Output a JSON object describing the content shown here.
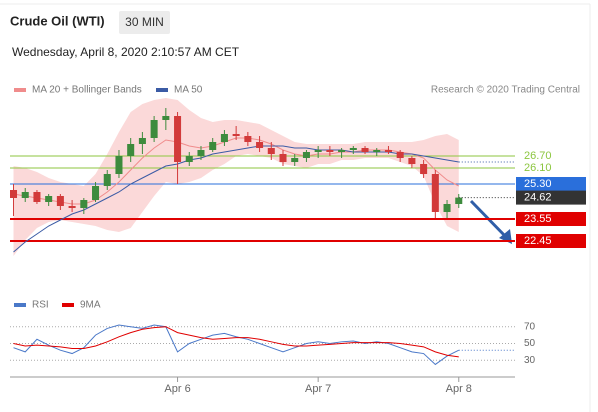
{
  "header": {
    "title": "Crude Oil (WTI)",
    "interval": "30 MIN",
    "timestamp": "Wednesday, April 8, 2020 2:10:57 AM CET"
  },
  "chart_data": [
    {
      "type": "candlestick",
      "source": "Research © 2020 Trading Central",
      "xlim": [
        -28.6,
        57.6
      ],
      "ylim": [
        21.5,
        29.5
      ],
      "x": [
        -28,
        -26,
        -24,
        -22,
        -20,
        -18,
        -16,
        -14,
        -12,
        -10,
        -8,
        -6,
        -4,
        -2,
        0,
        2,
        4,
        6,
        8,
        10,
        12,
        14,
        16,
        18,
        20,
        22,
        24,
        26,
        28,
        30,
        32,
        34,
        36,
        38,
        40,
        42,
        44,
        46,
        48
      ],
      "open": [
        25.0,
        24.6,
        24.9,
        24.4,
        24.7,
        24.2,
        24.1,
        24.5,
        25.2,
        25.8,
        26.7,
        27.3,
        27.6,
        28.5,
        28.7,
        26.4,
        26.7,
        27.0,
        27.4,
        27.8,
        27.7,
        27.4,
        27.1,
        26.8,
        26.4,
        26.6,
        26.9,
        27.0,
        26.9,
        27.0,
        27.1,
        26.9,
        27.0,
        26.9,
        26.6,
        26.3,
        25.8,
        23.9,
        24.3
      ],
      "high": [
        25.3,
        25.1,
        25.0,
        24.8,
        24.8,
        24.5,
        24.6,
        25.4,
        26.0,
        27.0,
        27.6,
        27.9,
        28.7,
        29.1,
        28.9,
        26.9,
        27.2,
        27.6,
        28.0,
        28.2,
        27.9,
        27.7,
        27.4,
        27.0,
        26.8,
        27.0,
        27.2,
        27.2,
        27.1,
        27.2,
        27.2,
        27.1,
        27.2,
        27.0,
        26.7,
        26.5,
        26.0,
        24.5,
        24.8
      ],
      "low": [
        23.7,
        24.4,
        24.3,
        24.2,
        24.0,
        23.9,
        23.8,
        24.4,
        25.0,
        25.6,
        26.4,
        26.8,
        27.4,
        28.0,
        25.3,
        26.2,
        26.5,
        26.9,
        27.2,
        27.5,
        27.2,
        26.9,
        26.5,
        26.2,
        26.2,
        26.4,
        26.6,
        26.7,
        26.6,
        26.8,
        26.8,
        26.7,
        26.8,
        26.4,
        26.1,
        25.6,
        23.6,
        23.6,
        24.1
      ],
      "close": [
        24.6,
        24.9,
        24.4,
        24.7,
        24.2,
        24.1,
        24.5,
        25.2,
        25.8,
        26.7,
        27.3,
        27.6,
        28.5,
        28.7,
        26.4,
        26.7,
        27.0,
        27.4,
        27.8,
        27.7,
        27.4,
        27.1,
        26.8,
        26.4,
        26.6,
        26.9,
        27.0,
        26.9,
        27.0,
        27.1,
        26.9,
        27.0,
        26.9,
        26.6,
        26.3,
        25.8,
        23.9,
        24.3,
        24.62
      ],
      "up_color": "#3d8b3d",
      "down_color": "#d23a3a",
      "series": [
        {
          "name": "MA 20 + Bollinger Bands",
          "color": "#f08c8c",
          "band_color": "#fbd9d9",
          "values": [
            24.8,
            24.7,
            24.6,
            24.5,
            24.4,
            24.3,
            24.3,
            24.5,
            24.9,
            25.4,
            26.0,
            26.6,
            27.1,
            27.5,
            27.4,
            27.2,
            27.1,
            27.2,
            27.4,
            27.6,
            27.6,
            27.5,
            27.3,
            27.0,
            26.8,
            26.7,
            26.8,
            26.8,
            26.9,
            26.9,
            27.0,
            27.0,
            27.0,
            26.9,
            26.8,
            26.6,
            26.0,
            25.5,
            25.2
          ],
          "upper": [
            26.2,
            26.1,
            25.9,
            25.6,
            25.4,
            25.3,
            25.2,
            25.8,
            26.8,
            27.9,
            28.9,
            29.3,
            29.5,
            29.6,
            29.5,
            29.0,
            28.6,
            28.4,
            28.5,
            28.5,
            28.4,
            28.3,
            28.0,
            27.7,
            27.4,
            27.3,
            27.3,
            27.3,
            27.3,
            27.3,
            27.4,
            27.4,
            27.4,
            27.4,
            27.4,
            27.5,
            27.7,
            27.8,
            27.5
          ],
          "lower": [
            21.7,
            22.5,
            23.1,
            23.4,
            23.5,
            23.4,
            23.3,
            23.2,
            23.0,
            22.9,
            23.1,
            23.9,
            24.7,
            25.4,
            25.3,
            25.4,
            25.6,
            26.0,
            26.3,
            26.7,
            26.8,
            26.7,
            26.6,
            26.3,
            26.2,
            26.1,
            26.3,
            26.3,
            26.5,
            26.5,
            26.6,
            26.6,
            26.6,
            26.4,
            26.2,
            25.7,
            24.3,
            23.2,
            22.9
          ]
        },
        {
          "name": "MA 50",
          "color": "#3b5ba5",
          "values": [
            21.9,
            22.4,
            22.8,
            23.2,
            23.5,
            23.8,
            24.0,
            24.3,
            24.6,
            24.9,
            25.3,
            25.6,
            25.9,
            26.2,
            26.3,
            26.5,
            26.6,
            26.8,
            26.9,
            27.0,
            27.1,
            27.2,
            27.2,
            27.2,
            27.1,
            27.1,
            27.0,
            27.0,
            27.0,
            26.9,
            26.9,
            26.9,
            26.9,
            26.8,
            26.8,
            26.7,
            26.6,
            26.5,
            26.4
          ]
        }
      ],
      "levels": [
        {
          "value": 26.7,
          "label": "26.70",
          "color": "#8cc63f",
          "style": "text"
        },
        {
          "value": 26.1,
          "label": "26.10",
          "color": "#8cc63f",
          "style": "text"
        },
        {
          "value": 25.3,
          "label": "25.30",
          "color": "#2a6fdb",
          "style": "box"
        },
        {
          "value": 24.62,
          "label": "24.62",
          "color": "#333333",
          "style": "last"
        },
        {
          "value": 23.55,
          "label": "23.55",
          "color": "#e00000",
          "style": "box"
        },
        {
          "value": 22.45,
          "label": "22.45",
          "color": "#e00000",
          "style": "box"
        }
      ]
    },
    {
      "type": "line",
      "xlim": [
        -28.6,
        57.6
      ],
      "ylim": [
        10,
        84
      ],
      "yticks": [
        30,
        50,
        70
      ],
      "xticks": [
        {
          "value": 0,
          "label": "Apr 6"
        },
        {
          "value": 24,
          "label": "Apr 7"
        },
        {
          "value": 48,
          "label": "Apr 8"
        }
      ],
      "x": [
        -28,
        -26,
        -24,
        -22,
        -20,
        -18,
        -16,
        -14,
        -12,
        -10,
        -8,
        -6,
        -4,
        -2,
        0,
        2,
        4,
        6,
        8,
        10,
        12,
        14,
        16,
        18,
        20,
        22,
        24,
        26,
        28,
        30,
        32,
        34,
        36,
        38,
        40,
        42,
        44,
        46,
        48
      ],
      "series": [
        {
          "name": "RSI",
          "color": "#4a78c8",
          "values": [
            45,
            40,
            55,
            48,
            42,
            38,
            45,
            60,
            68,
            72,
            70,
            68,
            72,
            70,
            40,
            50,
            55,
            60,
            62,
            58,
            55,
            50,
            45,
            40,
            45,
            50,
            52,
            50,
            52,
            53,
            50,
            52,
            50,
            45,
            40,
            38,
            25,
            35,
            42
          ]
        },
        {
          "name": "9MA",
          "color": "#e00000",
          "values": [
            50,
            47,
            48,
            47,
            46,
            44,
            44,
            47,
            52,
            58,
            63,
            67,
            69,
            70,
            63,
            60,
            57,
            55,
            56,
            57,
            57,
            55,
            52,
            49,
            47,
            47,
            48,
            49,
            50,
            51,
            51,
            51,
            51,
            50,
            48,
            46,
            40,
            36,
            34
          ]
        }
      ]
    }
  ]
}
